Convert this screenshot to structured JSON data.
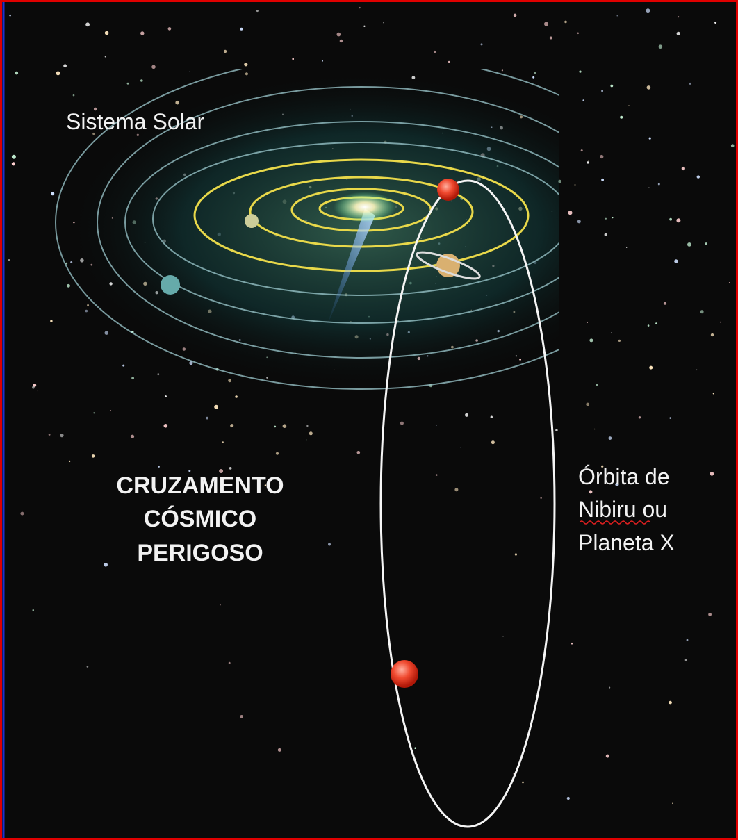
{
  "labels": {
    "solar_system": "Sistema Solar",
    "warning": [
      "CRUZAMENTO",
      "CÓSMICO",
      "PERIGOSO"
    ],
    "orbit_label": [
      "Órbita de",
      "Nibiru ou",
      "Planeta X"
    ]
  }
}
